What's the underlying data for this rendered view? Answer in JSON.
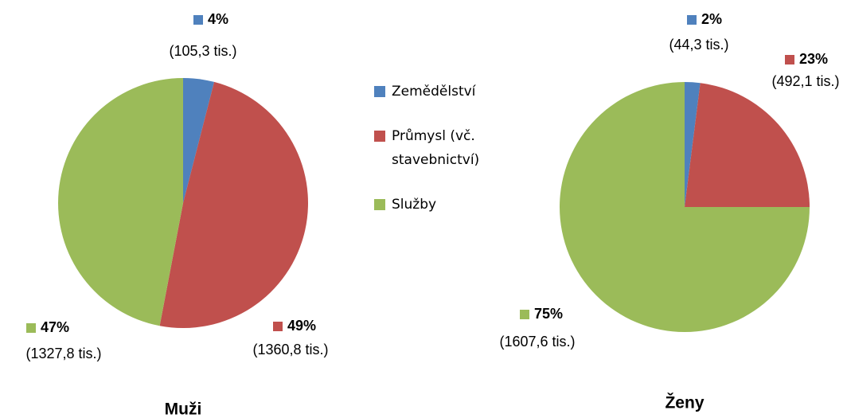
{
  "chart_data": [
    {
      "type": "pie",
      "title": "Muži",
      "categories": [
        "Zemědělství",
        "Průmysl (vč. stavebnictví)",
        "Služby"
      ],
      "values": [
        4,
        49,
        47
      ],
      "value_labels": [
        "4%",
        "49%",
        "47%"
      ],
      "detail_labels": [
        "(105,3 tis.)",
        "(1360,8 tis.)",
        "(1327,8 tis.)"
      ],
      "colors": [
        "#4f81bd",
        "#c0504d",
        "#9bbb59"
      ]
    },
    {
      "type": "pie",
      "title": "Ženy",
      "categories": [
        "Zemědělství",
        "Průmysl (vč. stavebnictví)",
        "Služby"
      ],
      "values": [
        2,
        23,
        75
      ],
      "value_labels": [
        "2%",
        "23%",
        "75%"
      ],
      "detail_labels": [
        "(44,3 tis.)",
        "(492,1 tis.)",
        "(1607,6 tis.)"
      ],
      "colors": [
        "#4f81bd",
        "#c0504d",
        "#9bbb59"
      ]
    }
  ]
}
